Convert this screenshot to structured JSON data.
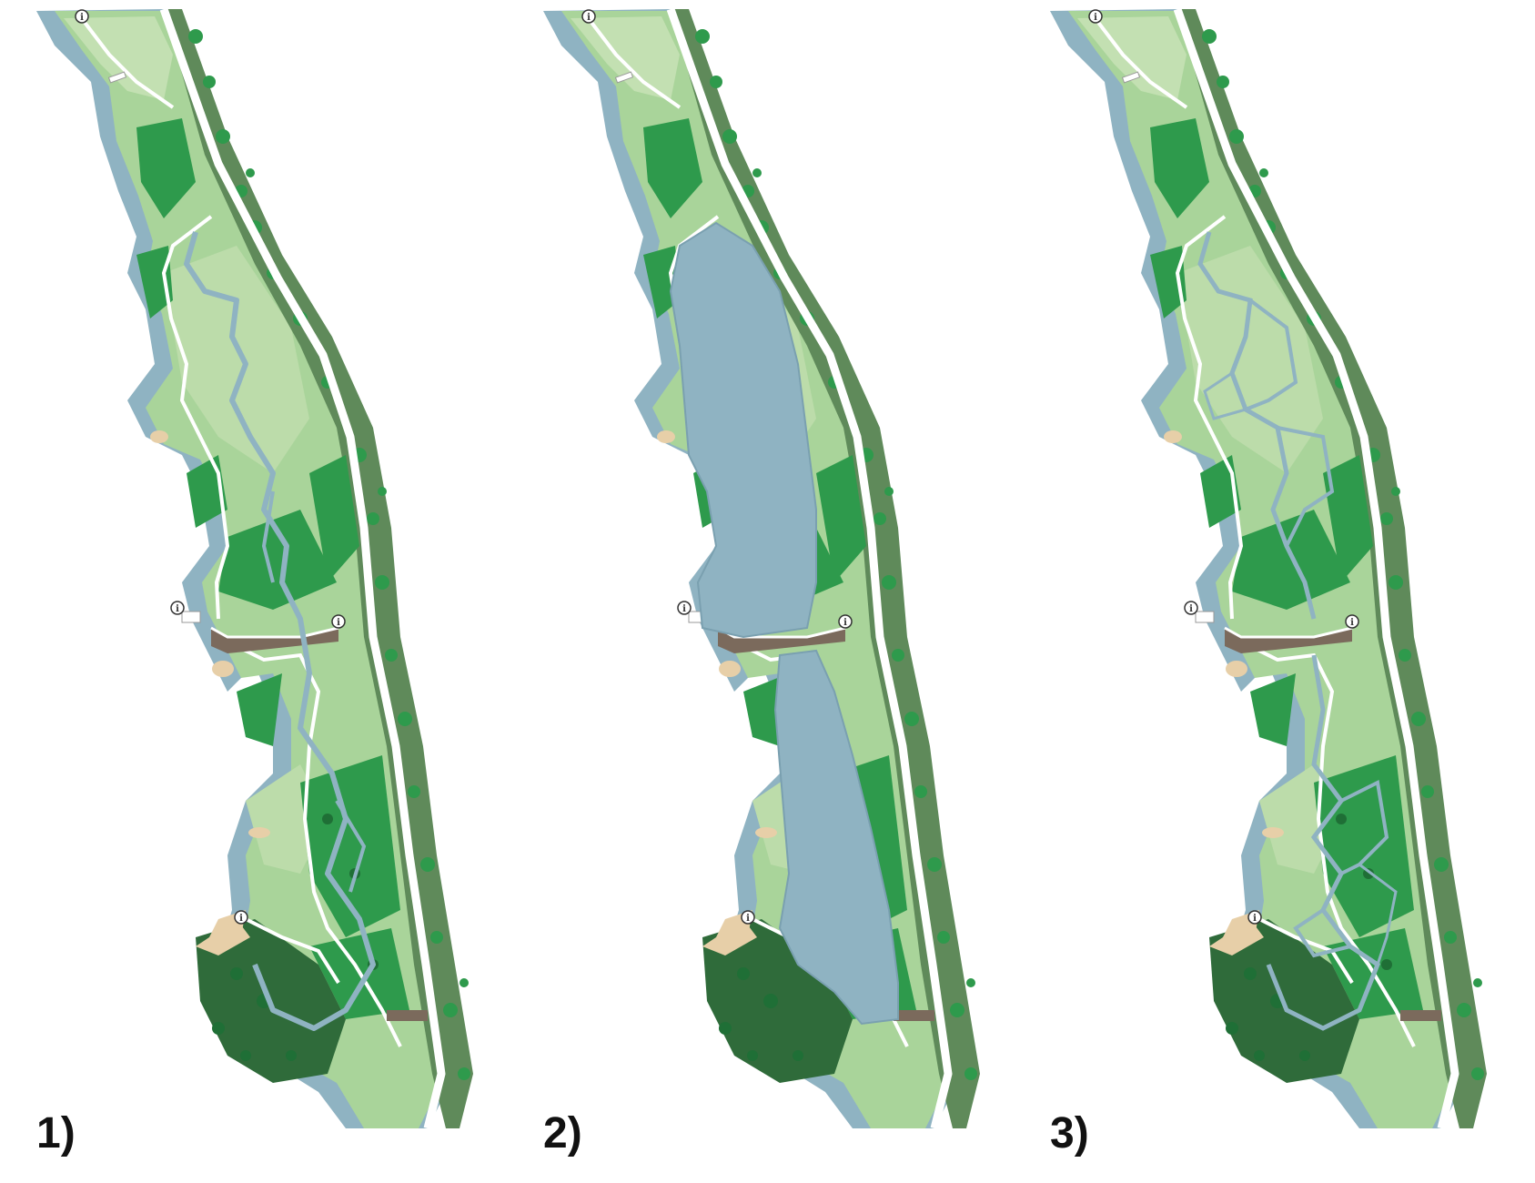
{
  "colors": {
    "water": "#8fb3c2",
    "water_edge": "#7aa0b0",
    "meadow": "#a9d49a",
    "meadow_light": "#c3e0b2",
    "forest": "#2e9a4c",
    "forest_dark": "#2f6b3a",
    "ridge": "#5f8a5a",
    "path": "#ffffff",
    "sand": "#e7cfa8",
    "dam": "#7b6a5c"
  },
  "panels": [
    {
      "label": "1)",
      "scenario": "river-meander",
      "info_marker": "i"
    },
    {
      "label": "2)",
      "scenario": "reservoir-lake",
      "info_marker": "i"
    },
    {
      "label": "3)",
      "scenario": "braided-channels",
      "info_marker": "i"
    }
  ]
}
